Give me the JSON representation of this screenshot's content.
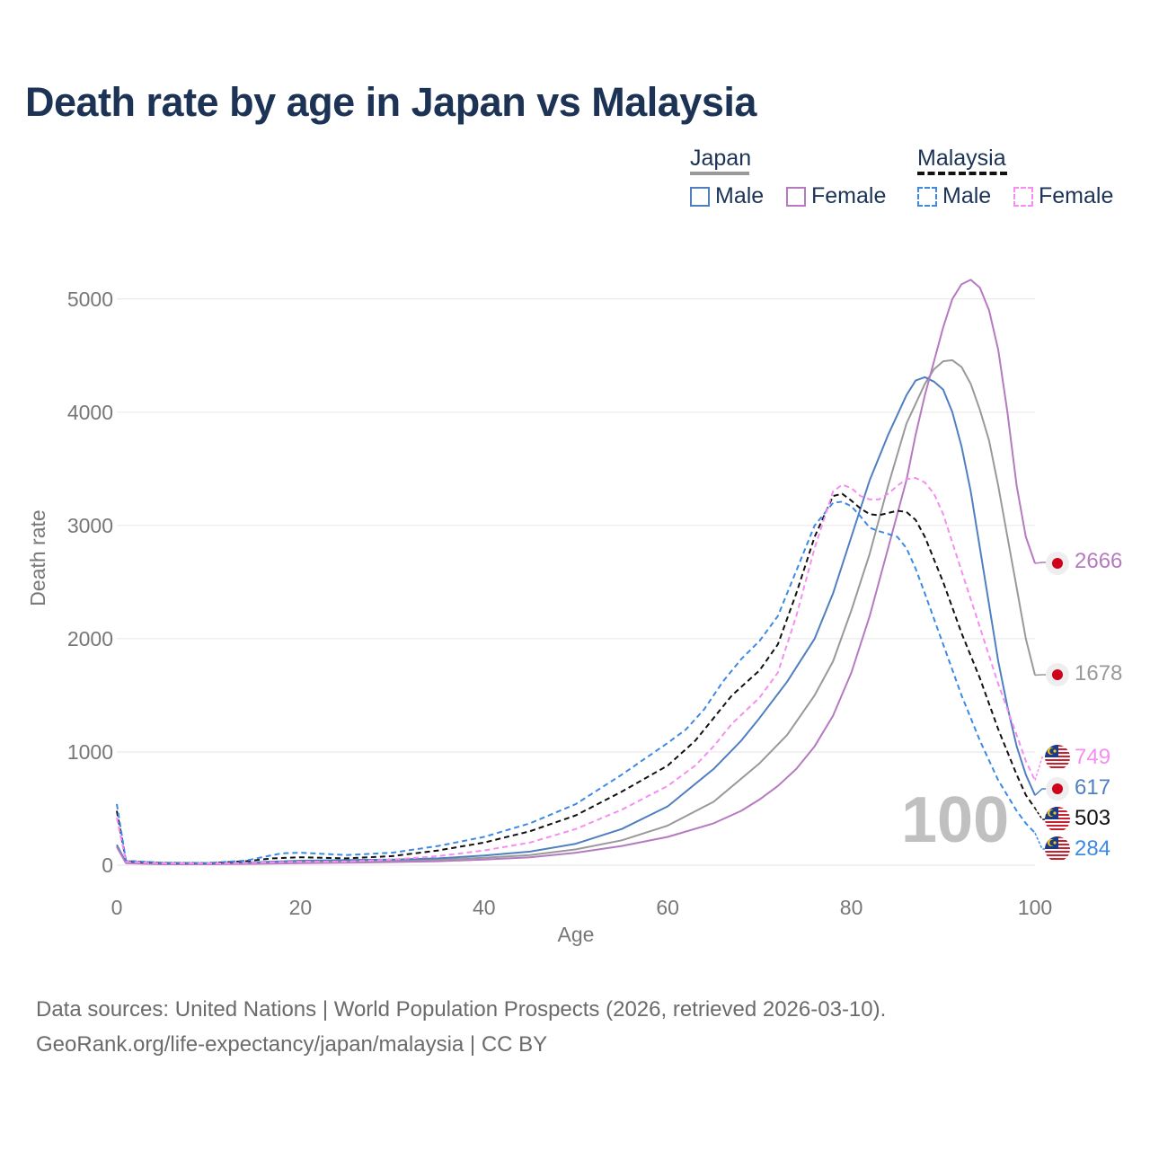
{
  "title": "Death rate by age in Japan vs Malaysia",
  "legend": {
    "country_a": "Japan",
    "country_b": "Malaysia",
    "male": "Male",
    "female": "Female"
  },
  "year_label": "100",
  "sources": {
    "line1": "Data sources: United Nations | World Population Prospects (2026, retrieved 2026-03-10).",
    "line2": "GeoRank.org/life-expectancy/japan/malaysia | CC BY"
  },
  "end_labels": {
    "japan_female": "2666",
    "japan_total": "1678",
    "malaysia_female": "749",
    "japan_male": "617",
    "malaysia_total": "503",
    "malaysia_male": "284"
  },
  "chart_data": {
    "type": "line",
    "title": "Death rate by age in Japan vs Malaysia",
    "xlabel": "Age",
    "ylabel": "Death rate",
    "xlim": [
      0,
      100
    ],
    "ylim": [
      0,
      5300
    ],
    "x_ticks": [
      "0",
      "20",
      "40",
      "60",
      "80",
      "100"
    ],
    "y_ticks": [
      "0",
      "1000",
      "2000",
      "3000",
      "4000",
      "5000"
    ],
    "x_tick_values": [
      0,
      20,
      40,
      60,
      80,
      100
    ],
    "y_tick_values": [
      0,
      1000,
      2000,
      3000,
      4000,
      5000
    ],
    "series": [
      {
        "name": "Japan Total",
        "color": "#999999",
        "dash": false,
        "points": [
          [
            0,
            170
          ],
          [
            1,
            20
          ],
          [
            5,
            10
          ],
          [
            10,
            10
          ],
          [
            15,
            20
          ],
          [
            20,
            30
          ],
          [
            25,
            35
          ],
          [
            30,
            40
          ],
          [
            35,
            50
          ],
          [
            40,
            65
          ],
          [
            45,
            90
          ],
          [
            50,
            140
          ],
          [
            55,
            220
          ],
          [
            60,
            350
          ],
          [
            65,
            560
          ],
          [
            70,
            900
          ],
          [
            73,
            1150
          ],
          [
            76,
            1500
          ],
          [
            78,
            1800
          ],
          [
            80,
            2250
          ],
          [
            82,
            2750
          ],
          [
            84,
            3350
          ],
          [
            86,
            3900
          ],
          [
            88,
            4250
          ],
          [
            89,
            4380
          ],
          [
            90,
            4450
          ],
          [
            91,
            4460
          ],
          [
            92,
            4400
          ],
          [
            93,
            4250
          ],
          [
            94,
            4020
          ],
          [
            95,
            3750
          ],
          [
            96,
            3350
          ],
          [
            97,
            2900
          ],
          [
            98,
            2450
          ],
          [
            99,
            2000
          ],
          [
            100,
            1678
          ]
        ]
      },
      {
        "name": "Japan Male",
        "color": "#4f7fc0",
        "dash": false,
        "points": [
          [
            0,
            180
          ],
          [
            1,
            25
          ],
          [
            5,
            12
          ],
          [
            10,
            12
          ],
          [
            15,
            25
          ],
          [
            20,
            40
          ],
          [
            25,
            45
          ],
          [
            30,
            50
          ],
          [
            35,
            60
          ],
          [
            40,
            85
          ],
          [
            45,
            120
          ],
          [
            50,
            190
          ],
          [
            55,
            320
          ],
          [
            60,
            520
          ],
          [
            65,
            850
          ],
          [
            68,
            1100
          ],
          [
            70,
            1300
          ],
          [
            73,
            1620
          ],
          [
            76,
            2000
          ],
          [
            78,
            2400
          ],
          [
            80,
            2900
          ],
          [
            82,
            3400
          ],
          [
            84,
            3800
          ],
          [
            86,
            4150
          ],
          [
            87,
            4280
          ],
          [
            88,
            4310
          ],
          [
            89,
            4270
          ],
          [
            90,
            4200
          ],
          [
            91,
            4000
          ],
          [
            92,
            3700
          ],
          [
            93,
            3300
          ],
          [
            94,
            2800
          ],
          [
            95,
            2300
          ],
          [
            96,
            1800
          ],
          [
            97,
            1400
          ],
          [
            98,
            1050
          ],
          [
            99,
            800
          ],
          [
            100,
            617
          ]
        ]
      },
      {
        "name": "Japan Female",
        "color": "#b57abf",
        "dash": false,
        "points": [
          [
            0,
            160
          ],
          [
            1,
            18
          ],
          [
            5,
            8
          ],
          [
            10,
            8
          ],
          [
            15,
            12
          ],
          [
            20,
            18
          ],
          [
            25,
            22
          ],
          [
            30,
            28
          ],
          [
            35,
            35
          ],
          [
            40,
            50
          ],
          [
            45,
            70
          ],
          [
            50,
            110
          ],
          [
            55,
            170
          ],
          [
            60,
            250
          ],
          [
            65,
            370
          ],
          [
            68,
            480
          ],
          [
            70,
            580
          ],
          [
            72,
            700
          ],
          [
            74,
            850
          ],
          [
            76,
            1050
          ],
          [
            78,
            1320
          ],
          [
            80,
            1700
          ],
          [
            82,
            2200
          ],
          [
            84,
            2800
          ],
          [
            86,
            3400
          ],
          [
            87,
            3800
          ],
          [
            88,
            4150
          ],
          [
            89,
            4450
          ],
          [
            90,
            4750
          ],
          [
            91,
            5000
          ],
          [
            92,
            5130
          ],
          [
            93,
            5170
          ],
          [
            94,
            5100
          ],
          [
            95,
            4900
          ],
          [
            96,
            4550
          ],
          [
            97,
            4000
          ],
          [
            98,
            3350
          ],
          [
            99,
            2900
          ],
          [
            100,
            2666
          ]
        ]
      },
      {
        "name": "Malaysia Total",
        "color": "#111111",
        "dash": true,
        "points": [
          [
            0,
            480
          ],
          [
            1,
            35
          ],
          [
            5,
            20
          ],
          [
            10,
            18
          ],
          [
            14,
            35
          ],
          [
            17,
            60
          ],
          [
            20,
            70
          ],
          [
            25,
            60
          ],
          [
            30,
            80
          ],
          [
            35,
            130
          ],
          [
            40,
            200
          ],
          [
            45,
            300
          ],
          [
            50,
            440
          ],
          [
            55,
            650
          ],
          [
            60,
            880
          ],
          [
            63,
            1100
          ],
          [
            65,
            1300
          ],
          [
            67,
            1500
          ],
          [
            70,
            1720
          ],
          [
            72,
            1950
          ],
          [
            74,
            2400
          ],
          [
            76,
            2900
          ],
          [
            78,
            3260
          ],
          [
            79,
            3280
          ],
          [
            80,
            3220
          ],
          [
            81,
            3150
          ],
          [
            82,
            3100
          ],
          [
            83,
            3090
          ],
          [
            84,
            3110
          ],
          [
            85,
            3130
          ],
          [
            86,
            3120
          ],
          [
            87,
            3050
          ],
          [
            88,
            2900
          ],
          [
            90,
            2500
          ],
          [
            92,
            2050
          ],
          [
            94,
            1650
          ],
          [
            96,
            1200
          ],
          [
            98,
            800
          ],
          [
            99,
            620
          ],
          [
            100,
            503
          ]
        ]
      },
      {
        "name": "Malaysia Male",
        "color": "#3d8ae6",
        "dash": true,
        "points": [
          [
            0,
            540
          ],
          [
            1,
            40
          ],
          [
            5,
            22
          ],
          [
            10,
            20
          ],
          [
            14,
            40
          ],
          [
            17,
            90
          ],
          [
            18,
            105
          ],
          [
            20,
            110
          ],
          [
            25,
            90
          ],
          [
            30,
            110
          ],
          [
            35,
            170
          ],
          [
            40,
            250
          ],
          [
            45,
            370
          ],
          [
            50,
            540
          ],
          [
            55,
            800
          ],
          [
            60,
            1080
          ],
          [
            62,
            1200
          ],
          [
            64,
            1380
          ],
          [
            66,
            1620
          ],
          [
            68,
            1820
          ],
          [
            70,
            1980
          ],
          [
            72,
            2200
          ],
          [
            74,
            2600
          ],
          [
            76,
            3000
          ],
          [
            78,
            3200
          ],
          [
            79,
            3210
          ],
          [
            80,
            3170
          ],
          [
            81,
            3080
          ],
          [
            82,
            2980
          ],
          [
            83,
            2950
          ],
          [
            85,
            2900
          ],
          [
            86,
            2800
          ],
          [
            87,
            2620
          ],
          [
            88,
            2400
          ],
          [
            90,
            1950
          ],
          [
            92,
            1500
          ],
          [
            94,
            1100
          ],
          [
            96,
            750
          ],
          [
            98,
            480
          ],
          [
            99,
            370
          ],
          [
            100,
            284
          ]
        ]
      },
      {
        "name": "Malaysia Female",
        "color": "#f58ef0",
        "dash": true,
        "points": [
          [
            0,
            420
          ],
          [
            1,
            30
          ],
          [
            5,
            16
          ],
          [
            10,
            15
          ],
          [
            15,
            22
          ],
          [
            20,
            30
          ],
          [
            25,
            32
          ],
          [
            30,
            50
          ],
          [
            35,
            80
          ],
          [
            40,
            130
          ],
          [
            45,
            200
          ],
          [
            50,
            320
          ],
          [
            55,
            490
          ],
          [
            60,
            700
          ],
          [
            63,
            880
          ],
          [
            65,
            1050
          ],
          [
            67,
            1250
          ],
          [
            70,
            1480
          ],
          [
            72,
            1700
          ],
          [
            74,
            2200
          ],
          [
            76,
            2800
          ],
          [
            78,
            3300
          ],
          [
            79,
            3360
          ],
          [
            80,
            3330
          ],
          [
            81,
            3260
          ],
          [
            82,
            3230
          ],
          [
            83,
            3230
          ],
          [
            84,
            3280
          ],
          [
            85,
            3350
          ],
          [
            86,
            3410
          ],
          [
            87,
            3420
          ],
          [
            88,
            3380
          ],
          [
            89,
            3280
          ],
          [
            90,
            3100
          ],
          [
            92,
            2600
          ],
          [
            94,
            2100
          ],
          [
            96,
            1600
          ],
          [
            98,
            1150
          ],
          [
            99,
            920
          ],
          [
            100,
            749
          ]
        ]
      }
    ]
  },
  "colors": {
    "title": "#1c3355",
    "grid": "#e6e6e6",
    "axis_text": "#777777",
    "japan_flag_red": "#d0021b",
    "malaysia_blue": "#1a3a8a",
    "malaysia_red": "#cc1f2c",
    "malaysia_yellow": "#f5c518"
  }
}
